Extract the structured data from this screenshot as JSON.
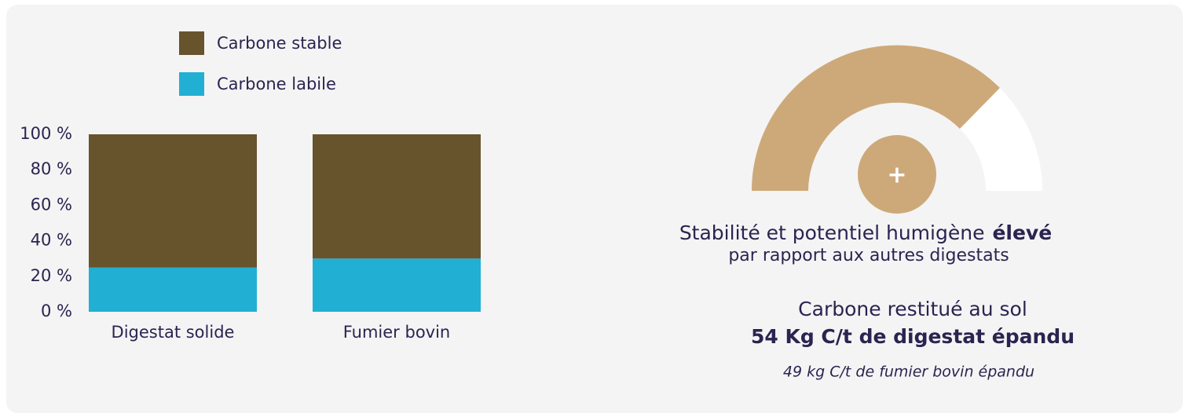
{
  "chart_data": {
    "type": "bar",
    "stacked": true,
    "categories": [
      "Digestat solide",
      "Fumier bovin"
    ],
    "series": [
      {
        "name": "Carbone labile",
        "color": "#22afd4",
        "values": [
          25,
          30
        ]
      },
      {
        "name": "Carbone stable",
        "color": "#67542d",
        "values": [
          75,
          70
        ]
      }
    ],
    "ylim": [
      0,
      100
    ],
    "yticks": [
      {
        "value": 0,
        "label": "0 %"
      },
      {
        "value": 20,
        "label": "20 %"
      },
      {
        "value": 40,
        "label": "40 %"
      },
      {
        "value": 60,
        "label": "60 %"
      },
      {
        "value": 80,
        "label": "80 %"
      },
      {
        "value": 100,
        "label": "100 %"
      }
    ],
    "grid": false,
    "legend": "top"
  },
  "info": {
    "line1": "Stabilité et potentiel humigène",
    "line1_emphasis": "élevé",
    "line2": "par rapport aux autres digestats",
    "restitution_title": "Carbone restitué au sol",
    "restitution_value": "54 Kg C/t de digestat épandu",
    "restitution_compare": "49 kg C/t de fumier bovin épandu",
    "gauge_symbol": "+"
  }
}
